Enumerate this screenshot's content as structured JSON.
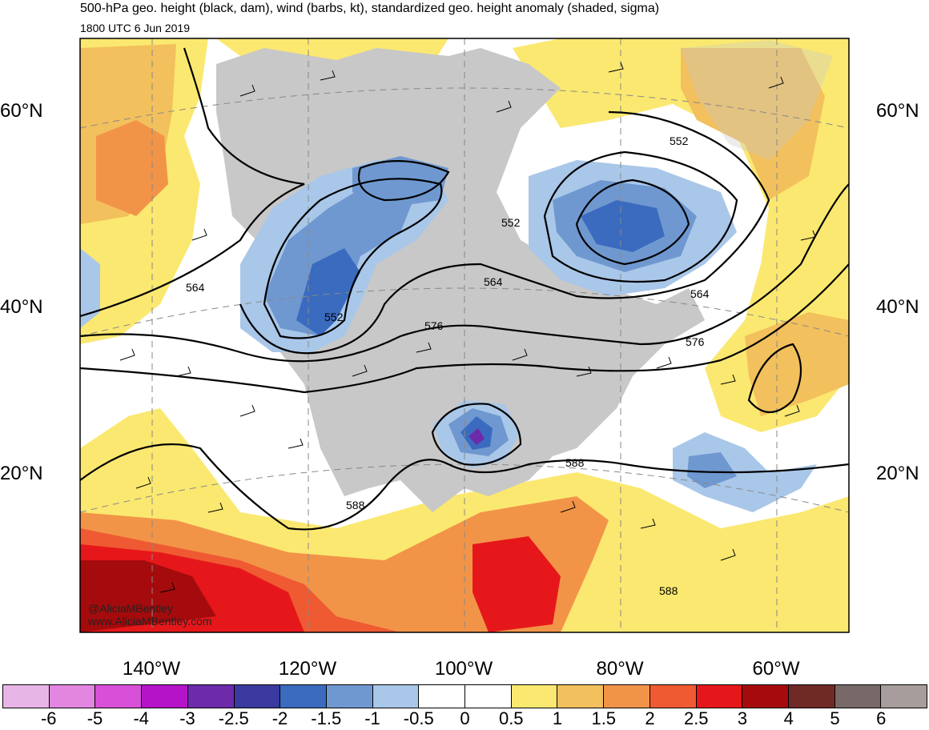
{
  "header": {
    "title": "500-hPa geo. height (black, dam), wind (barbs, kt), standardized geo. height anomaly (shaded, sigma)",
    "valid_time": "1800 UTC 6 Jun 2019"
  },
  "map": {
    "lat_labels": [
      {
        "text": "60°N",
        "lat": 60
      },
      {
        "text": "40°N",
        "lat": 40
      },
      {
        "text": "20°N",
        "lat": 20
      }
    ],
    "lon_labels": [
      {
        "text": "140°W",
        "lon": -140
      },
      {
        "text": "120°W",
        "lon": -120
      },
      {
        "text": "100°W",
        "lon": -100
      },
      {
        "text": "80°W",
        "lon": -80
      },
      {
        "text": "60°W",
        "lon": -60
      }
    ],
    "contour_labels": [
      {
        "text": "564",
        "region": "northeast Pacific"
      },
      {
        "text": "552",
        "region": "Pacific Northwest low"
      },
      {
        "text": "552",
        "region": "Hudson Bay"
      },
      {
        "text": "564",
        "region": "Great Lakes"
      },
      {
        "text": "576",
        "region": "northern Plains"
      },
      {
        "text": "552",
        "region": "Labrador Sea"
      },
      {
        "text": "564",
        "region": "Nova Scotia"
      },
      {
        "text": "576",
        "region": "western Atlantic"
      },
      {
        "text": "588",
        "region": "Gulf of Mexico"
      },
      {
        "text": "588",
        "region": "eastern Pacific"
      },
      {
        "text": "588",
        "region": "Caribbean"
      }
    ],
    "contour_levels_dam": [
      552,
      564,
      576,
      588
    ],
    "anomaly_features": [
      {
        "name": "Pacific Northwest trough",
        "sigma": -2
      },
      {
        "name": "Hudson Bay low",
        "sigma": -2
      },
      {
        "name": "Labrador low",
        "sigma": -2
      },
      {
        "name": "Southern Plains cutoff low",
        "sigma": -2.5
      },
      {
        "name": "Central Atlantic low",
        "sigma": -1.5
      },
      {
        "name": "Tropical eastern Pacific ridge",
        "sigma": 3
      },
      {
        "name": "Greenland ridge",
        "sigma": 1.5
      },
      {
        "name": "Gulf of Alaska ridge",
        "sigma": 1.5
      }
    ],
    "credits": [
      "@AliciaMBentley",
      "www.AliciaMBentley.com"
    ]
  },
  "colorbar": {
    "colors": [
      "#e8b6e6",
      "#e286e0",
      "#d850d8",
      "#b413c8",
      "#6d2aaa",
      "#3a3aa0",
      "#3b6bbf",
      "#6f98d0",
      "#a9c7e8",
      "#ffffff",
      "#ffffff",
      "#fbe870",
      "#f2c05c",
      "#f29448",
      "#ef5a33",
      "#e6171a",
      "#a50b0c",
      "#6f2a26",
      "#786969",
      "#a69d9c"
    ],
    "ticks": [
      "-6",
      "-5",
      "-4",
      "-3",
      "-2.5",
      "-2",
      "-1.5",
      "-1",
      "-0.5",
      "0",
      "0.5",
      "1",
      "1.5",
      "2",
      "2.5",
      "3",
      "4",
      "5",
      "6"
    ]
  },
  "style": {
    "land_color": "#c8c8c8",
    "contour_color": "#000000",
    "graticule_color": "#888888"
  }
}
